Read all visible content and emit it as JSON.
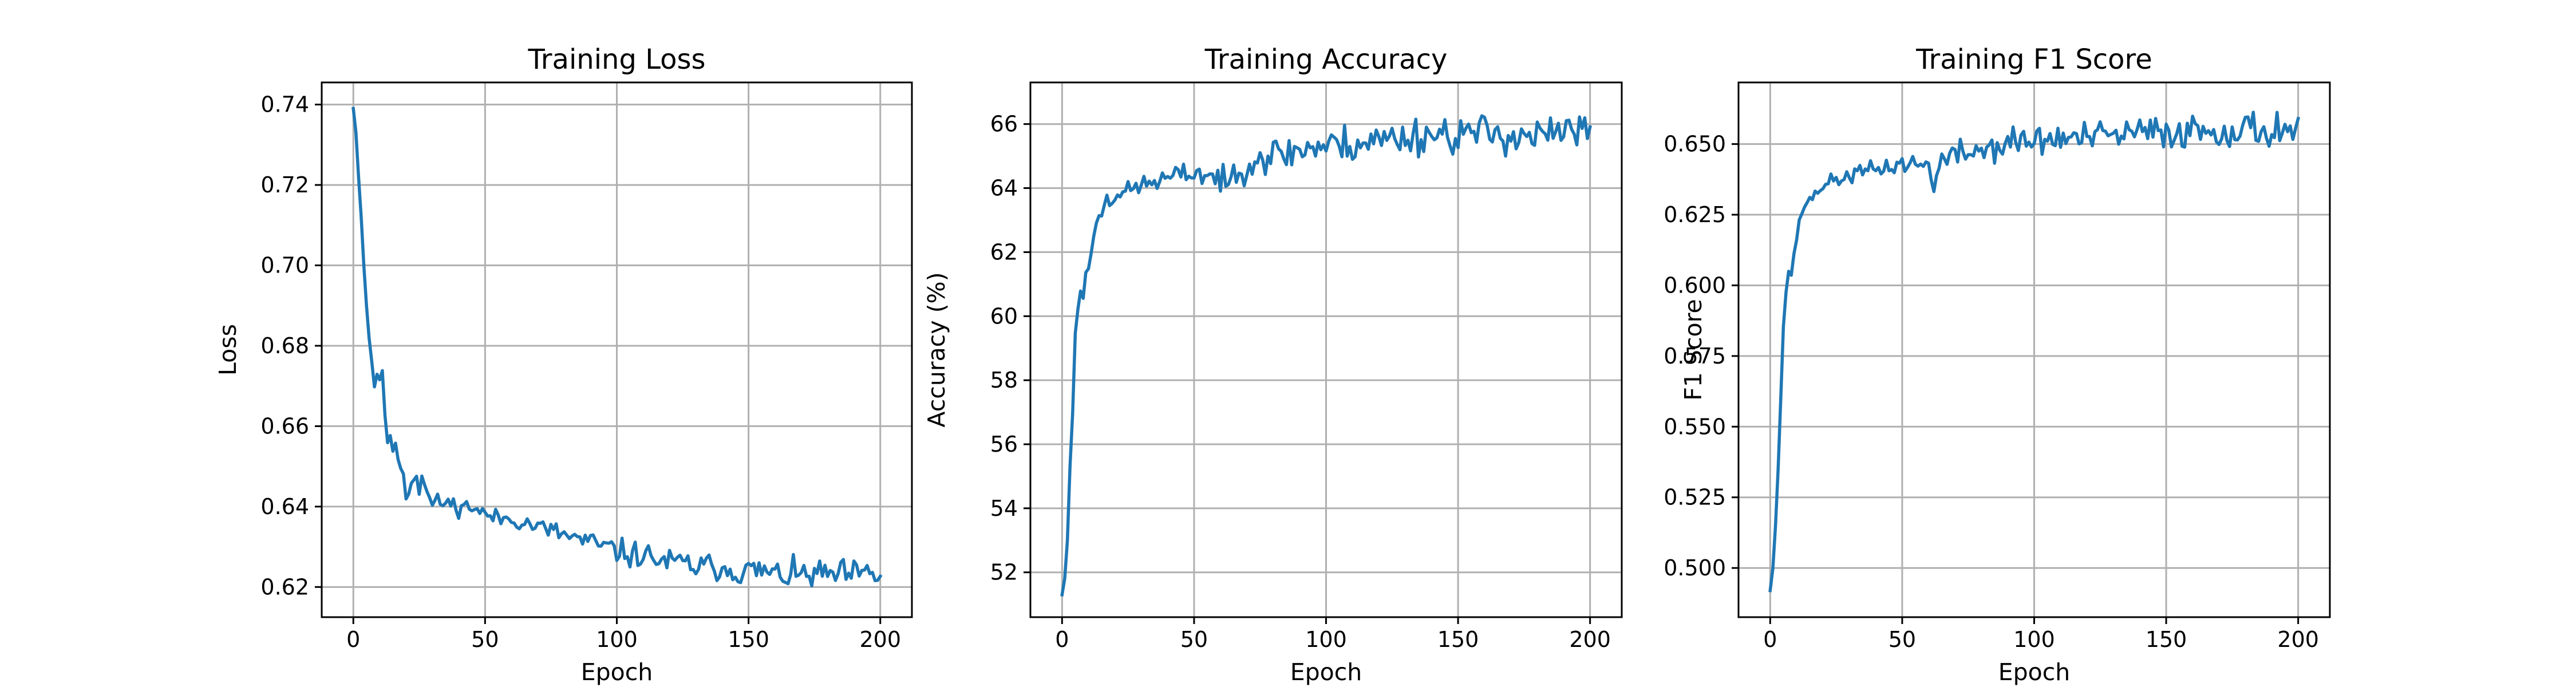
{
  "chart_data": [
    {
      "type": "line",
      "title": "Training Loss",
      "xlabel": "Epoch",
      "ylabel": "Loss",
      "xlim": [
        -12,
        212
      ],
      "ylim": [
        0.6125,
        0.7455
      ],
      "xticks": [
        0,
        50,
        100,
        150,
        200
      ],
      "yticks": [
        0.62,
        0.64,
        0.66,
        0.68,
        0.7,
        0.72,
        0.74
      ],
      "ytick_labels": [
        "0.62",
        "0.64",
        "0.66",
        "0.68",
        "0.70",
        "0.72",
        "0.74"
      ],
      "grid": true,
      "series_color": "#1f77b4",
      "anchors": [
        [
          0,
          0.739
        ],
        [
          1,
          0.733
        ],
        [
          2,
          0.722
        ],
        [
          3,
          0.712
        ],
        [
          4,
          0.7
        ],
        [
          5,
          0.69
        ],
        [
          6,
          0.682
        ],
        [
          7,
          0.676
        ],
        [
          8,
          0.67
        ],
        [
          9,
          0.673
        ],
        [
          10,
          0.671
        ],
        [
          11,
          0.674
        ],
        [
          12,
          0.663
        ],
        [
          13,
          0.656
        ],
        [
          14,
          0.657
        ],
        [
          15,
          0.654
        ],
        [
          16,
          0.656
        ],
        [
          17,
          0.652
        ],
        [
          18,
          0.65
        ],
        [
          19,
          0.648
        ],
        [
          20,
          0.642
        ],
        [
          22,
          0.646
        ],
        [
          24,
          0.648
        ],
        [
          25,
          0.644
        ],
        [
          26,
          0.648
        ],
        [
          28,
          0.643
        ],
        [
          30,
          0.641
        ],
        [
          35,
          0.641
        ],
        [
          40,
          0.64
        ],
        [
          45,
          0.64
        ],
        [
          50,
          0.638
        ],
        [
          55,
          0.637
        ],
        [
          60,
          0.637
        ],
        [
          65,
          0.636
        ],
        [
          70,
          0.635
        ],
        [
          75,
          0.634
        ],
        [
          80,
          0.633
        ],
        [
          85,
          0.632
        ],
        [
          90,
          0.631
        ],
        [
          95,
          0.63
        ],
        [
          100,
          0.629
        ],
        [
          105,
          0.628
        ],
        [
          110,
          0.628
        ],
        [
          115,
          0.627
        ],
        [
          120,
          0.626
        ],
        [
          125,
          0.626
        ],
        [
          130,
          0.625
        ],
        [
          135,
          0.625
        ],
        [
          140,
          0.625
        ],
        [
          145,
          0.624
        ],
        [
          150,
          0.624
        ],
        [
          155,
          0.624
        ],
        [
          160,
          0.623
        ],
        [
          165,
          0.623
        ],
        [
          170,
          0.623
        ],
        [
          175,
          0.623
        ],
        [
          180,
          0.623
        ],
        [
          185,
          0.623
        ],
        [
          190,
          0.623
        ],
        [
          195,
          0.623
        ],
        [
          200,
          0.623
        ]
      ],
      "noise_amplitude": [
        [
          0,
          0
        ],
        [
          20,
          0.001
        ],
        [
          30,
          0.002
        ],
        [
          60,
          0.002
        ],
        [
          100,
          0.003
        ],
        [
          200,
          0.0035
        ]
      ],
      "seed": 11
    },
    {
      "type": "line",
      "title": "Training Accuracy",
      "xlabel": "Epoch",
      "ylabel": "Accuracy (%)",
      "xlim": [
        -12,
        212
      ],
      "ylim": [
        50.6,
        67.3
      ],
      "xticks": [
        0,
        50,
        100,
        150,
        200
      ],
      "yticks": [
        52,
        54,
        56,
        58,
        60,
        62,
        64,
        66
      ],
      "ytick_labels": [
        "52",
        "54",
        "56",
        "58",
        "60",
        "62",
        "64",
        "66"
      ],
      "grid": true,
      "series_color": "#1f77b4",
      "anchors": [
        [
          0,
          51.3
        ],
        [
          1,
          51.8
        ],
        [
          2,
          53.0
        ],
        [
          3,
          55.3
        ],
        [
          4,
          57.0
        ],
        [
          5,
          59.5
        ],
        [
          6,
          60.3
        ],
        [
          7,
          60.7
        ],
        [
          8,
          60.5
        ],
        [
          9,
          61.5
        ],
        [
          10,
          61.4
        ],
        [
          11,
          62.0
        ],
        [
          12,
          62.6
        ],
        [
          13,
          62.9
        ],
        [
          14,
          63.0
        ],
        [
          15,
          63.3
        ],
        [
          16,
          63.5
        ],
        [
          17,
          63.8
        ],
        [
          18,
          63.6
        ],
        [
          20,
          63.8
        ],
        [
          25,
          63.9
        ],
        [
          30,
          64.1
        ],
        [
          35,
          64.2
        ],
        [
          40,
          64.3
        ],
        [
          45,
          64.4
        ],
        [
          50,
          64.5
        ],
        [
          55,
          64.4
        ],
        [
          60,
          64.3
        ],
        [
          62,
          63.9
        ],
        [
          65,
          64.5
        ],
        [
          70,
          64.8
        ],
        [
          75,
          65.0
        ],
        [
          80,
          65.0
        ],
        [
          85,
          65.1
        ],
        [
          90,
          65.2
        ],
        [
          95,
          65.3
        ],
        [
          100,
          65.3
        ],
        [
          110,
          65.4
        ],
        [
          120,
          65.5
        ],
        [
          130,
          65.6
        ],
        [
          140,
          65.7
        ],
        [
          150,
          65.7
        ],
        [
          160,
          65.7
        ],
        [
          170,
          65.7
        ],
        [
          180,
          65.6
        ],
        [
          190,
          65.7
        ],
        [
          200,
          65.8
        ]
      ],
      "noise_amplitude": [
        [
          0,
          0
        ],
        [
          15,
          0.25
        ],
        [
          40,
          0.3
        ],
        [
          80,
          0.55
        ],
        [
          200,
          0.6
        ]
      ],
      "seed": 23
    },
    {
      "type": "line",
      "title": "Training F1 Score",
      "xlabel": "Epoch",
      "ylabel": "F1 Score",
      "xlim": [
        -12,
        212
      ],
      "ylim": [
        0.4826,
        0.6718
      ],
      "xticks": [
        0,
        50,
        100,
        150,
        200
      ],
      "yticks": [
        0.5,
        0.525,
        0.55,
        0.575,
        0.6,
        0.625,
        0.65
      ],
      "ytick_labels": [
        "0.500",
        "0.525",
        "0.550",
        "0.575",
        "0.600",
        "0.625",
        "0.650"
      ],
      "grid": true,
      "series_color": "#1f77b4",
      "anchors": [
        [
          0,
          0.492
        ],
        [
          1,
          0.5
        ],
        [
          2,
          0.515
        ],
        [
          3,
          0.535
        ],
        [
          4,
          0.56
        ],
        [
          5,
          0.585
        ],
        [
          6,
          0.598
        ],
        [
          7,
          0.605
        ],
        [
          8,
          0.604
        ],
        [
          9,
          0.61
        ],
        [
          10,
          0.617
        ],
        [
          11,
          0.622
        ],
        [
          12,
          0.626
        ],
        [
          13,
          0.628
        ],
        [
          14,
          0.63
        ],
        [
          16,
          0.631
        ],
        [
          18,
          0.633
        ],
        [
          20,
          0.636
        ],
        [
          25,
          0.637
        ],
        [
          30,
          0.639
        ],
        [
          35,
          0.64
        ],
        [
          40,
          0.641
        ],
        [
          45,
          0.642
        ],
        [
          50,
          0.643
        ],
        [
          55,
          0.643
        ],
        [
          60,
          0.642
        ],
        [
          62,
          0.637
        ],
        [
          65,
          0.644
        ],
        [
          70,
          0.646
        ],
        [
          75,
          0.647
        ],
        [
          80,
          0.648
        ],
        [
          85,
          0.649
        ],
        [
          90,
          0.65
        ],
        [
          95,
          0.651
        ],
        [
          100,
          0.651
        ],
        [
          110,
          0.652
        ],
        [
          120,
          0.652
        ],
        [
          130,
          0.653
        ],
        [
          140,
          0.654
        ],
        [
          150,
          0.654
        ],
        [
          160,
          0.655
        ],
        [
          170,
          0.655
        ],
        [
          180,
          0.655
        ],
        [
          190,
          0.655
        ],
        [
          200,
          0.656
        ]
      ],
      "noise_amplitude": [
        [
          0,
          0
        ],
        [
          15,
          0.002
        ],
        [
          40,
          0.003
        ],
        [
          80,
          0.005
        ],
        [
          200,
          0.006
        ]
      ],
      "seed": 37
    }
  ]
}
